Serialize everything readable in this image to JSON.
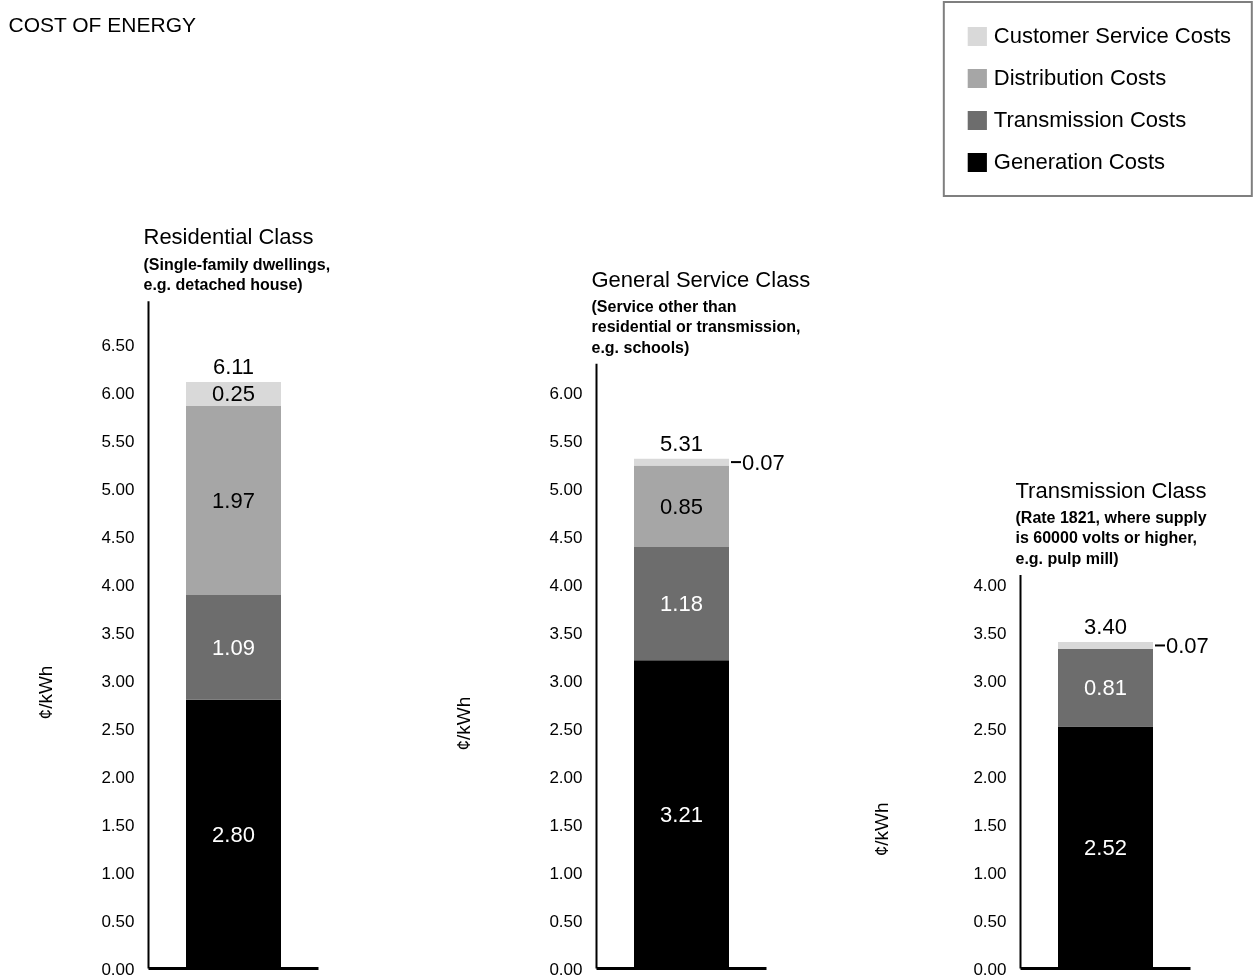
{
  "chart_data": [
    {
      "type": "bar",
      "stacked": true,
      "title": "Residential Class",
      "subtitle": "(Single-family dwellings,\ne.g. detached house)",
      "annotations": [
        "COST OF ENERGY"
      ],
      "ylabel": "¢/kWh",
      "categories": [
        null
      ],
      "series": [
        {
          "color": "#000000",
          "values": [
            2.8
          ],
          "value_labels": [
            "2.80"
          ]
        },
        {
          "color": "#6d6d6d",
          "values": [
            1.09
          ],
          "value_labels": [
            "1.09"
          ]
        },
        {
          "color": "#a6a6a6",
          "values": [
            1.97
          ],
          "value_labels": [
            "1.97"
          ]
        },
        {
          "color": "#d9d9d9",
          "values": [
            0.25
          ],
          "value_labels": [
            "0.25"
          ]
        }
      ],
      "totals": [
        "6.11"
      ],
      "ylim": [
        0,
        6.95
      ],
      "yticks": [
        {
          "value": 0,
          "label": "0.00"
        },
        {
          "value": 0.5,
          "label": "0.50"
        },
        {
          "value": 1,
          "label": "1.00"
        },
        {
          "value": 1.5,
          "label": "1.50"
        },
        {
          "value": 2,
          "label": "2.00"
        },
        {
          "value": 2.5,
          "label": "2.50"
        },
        {
          "value": 3,
          "label": "3.00"
        },
        {
          "value": 3.5,
          "label": "3.50"
        },
        {
          "value": 4,
          "label": "4.00"
        },
        {
          "value": 4.5,
          "label": "4.50"
        },
        {
          "value": 5,
          "label": "5.00"
        },
        {
          "value": 5.5,
          "label": "5.50"
        },
        {
          "value": 6,
          "label": "6.00"
        },
        {
          "value": 6.5,
          "label": "6.50"
        }
      ],
      "grid": false,
      "legend": false,
      "tick_labels": "y"
    },
    {
      "type": "bar",
      "stacked": true,
      "title": "General Service Class",
      "subtitle": "(Service other than\nresidential or transmission,\ne.g. schools)",
      "ylabel": "¢/kWh",
      "categories": [
        null
      ],
      "series": [
        {
          "color": "#000000",
          "values": [
            3.21
          ],
          "value_labels": [
            "3.21"
          ]
        },
        {
          "color": "#6d6d6d",
          "values": [
            1.18
          ],
          "value_labels": [
            "1.18"
          ]
        },
        {
          "color": "#a6a6a6",
          "values": [
            0.85
          ],
          "value_labels": [
            "0.85"
          ]
        },
        {
          "color": "#d9d9d9",
          "values": [
            0.07
          ],
          "value_labels": [
            "0.07"
          ]
        }
      ],
      "totals": [
        "5.31"
      ],
      "ylim": [
        0,
        6.3
      ],
      "yticks": [
        {
          "value": 0,
          "label": "0.00"
        },
        {
          "value": 0.5,
          "label": "0.50"
        },
        {
          "value": 1,
          "label": "1.00"
        },
        {
          "value": 1.5,
          "label": "1.50"
        },
        {
          "value": 2,
          "label": "2.00"
        },
        {
          "value": 2.5,
          "label": "2.50"
        },
        {
          "value": 3,
          "label": "3.00"
        },
        {
          "value": 3.5,
          "label": "3.50"
        },
        {
          "value": 4,
          "label": "4.00"
        },
        {
          "value": 4.5,
          "label": "4.50"
        },
        {
          "value": 5,
          "label": "5.00"
        },
        {
          "value": 5.5,
          "label": "5.50"
        },
        {
          "value": 6,
          "label": "6.00"
        }
      ],
      "grid": false,
      "legend": false,
      "tick_labels": "y"
    },
    {
      "type": "bar",
      "stacked": true,
      "title": "Transmission Class",
      "subtitle": "(Rate 1821, where supply\nis 60000 volts or higher,\ne.g. pulp mill)",
      "ylabel": "¢/kWh",
      "categories": [
        null
      ],
      "series": [
        {
          "name": "Generation Costs",
          "color": "#000000",
          "values": [
            2.52
          ],
          "value_labels": [
            "2.52"
          ]
        },
        {
          "name": "Transmission Costs",
          "color": "#6d6d6d",
          "values": [
            0.81
          ],
          "value_labels": [
            "0.81"
          ]
        },
        {
          "name": "Distribution Costs",
          "color": "#a6a6a6",
          "values": [
            null
          ],
          "value_labels": [
            null
          ]
        },
        {
          "name": "Customer Service Costs",
          "color": "#d9d9d9",
          "values": [
            0.07
          ],
          "value_labels": [
            "0.07"
          ]
        }
      ],
      "totals": [
        "3.40"
      ],
      "ylim": [
        0,
        4.1
      ],
      "yticks": [
        {
          "value": 0,
          "label": "0.00"
        },
        {
          "value": 0.5,
          "label": "0.50"
        },
        {
          "value": 1,
          "label": "1.00"
        },
        {
          "value": 1.5,
          "label": "1.50"
        },
        {
          "value": 2,
          "label": "2.00"
        },
        {
          "value": 2.5,
          "label": "2.50"
        },
        {
          "value": 3,
          "label": "3.00"
        },
        {
          "value": 3.5,
          "label": "3.50"
        },
        {
          "value": 4,
          "label": "4.00"
        }
      ],
      "grid": false,
      "legend": "top right",
      "tick_labels": "y"
    }
  ]
}
